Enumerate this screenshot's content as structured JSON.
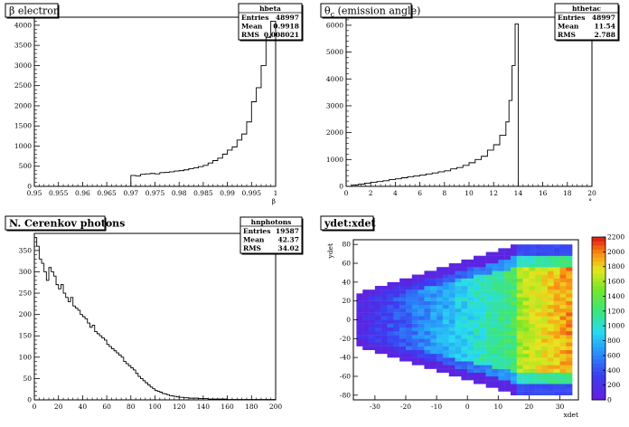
{
  "chart_data": [
    {
      "type": "histogram",
      "title": "β electron",
      "stats": {
        "name": "hbeta",
        "rows": [
          [
            "Entries",
            "48997"
          ],
          [
            "Mean",
            "0.9918"
          ],
          [
            "RMS",
            "0.008021"
          ]
        ]
      },
      "xlabel": "β",
      "ylabel": "",
      "xlim": [
        0.95,
        1.0
      ],
      "ylim": [
        0,
        4200
      ],
      "x_ticks": [
        "0.95",
        "0.955",
        "0.96",
        "0.965",
        "0.97",
        "0.975",
        "0.98",
        "0.985",
        "0.99",
        "0.995",
        "1"
      ],
      "y_ticks": [
        "0",
        "500",
        "1000",
        "1500",
        "2000",
        "2500",
        "3000",
        "3500",
        "4000"
      ],
      "x": [
        0.97,
        0.971,
        0.972,
        0.973,
        0.974,
        0.975,
        0.976,
        0.977,
        0.978,
        0.979,
        0.98,
        0.981,
        0.982,
        0.983,
        0.984,
        0.985,
        0.986,
        0.987,
        0.988,
        0.989,
        0.99,
        0.991,
        0.992,
        0.993,
        0.994,
        0.995,
        0.996,
        0.997,
        0.998,
        0.999
      ],
      "values": [
        270,
        260,
        300,
        310,
        320,
        310,
        340,
        350,
        360,
        380,
        390,
        410,
        440,
        460,
        490,
        520,
        580,
        640,
        700,
        800,
        900,
        980,
        1150,
        1300,
        1600,
        2100,
        2450,
        3000,
        3700,
        4100
      ]
    },
    {
      "type": "histogram",
      "title": "θc (emission angle)",
      "title_main": "θ",
      "title_sub": "c",
      "title_rest": " (emission angle)",
      "stats": {
        "name": "hthetac",
        "rows": [
          [
            "Entries",
            "48997"
          ],
          [
            "Mean",
            "11.54"
          ],
          [
            "RMS",
            "2.788"
          ]
        ]
      },
      "xlabel": "°",
      "ylabel": "",
      "xlim": [
        0,
        20
      ],
      "ylim": [
        0,
        6300
      ],
      "x_ticks": [
        "0",
        "2",
        "4",
        "6",
        "8",
        "10",
        "12",
        "14",
        "16",
        "18",
        "20"
      ],
      "y_ticks": [
        "0",
        "1000",
        "2000",
        "3000",
        "4000",
        "5000",
        "6000"
      ],
      "x": [
        0.5,
        1,
        1.5,
        2,
        2.5,
        3,
        3.5,
        4,
        4.5,
        5,
        5.5,
        6,
        6.5,
        7,
        7.5,
        8,
        8.5,
        9,
        9.5,
        10,
        10.5,
        11,
        11.5,
        12,
        12.5,
        13,
        13.25,
        13.5,
        13.75
      ],
      "values": [
        50,
        80,
        120,
        150,
        180,
        210,
        250,
        280,
        320,
        360,
        390,
        420,
        460,
        500,
        540,
        580,
        650,
        700,
        780,
        880,
        1000,
        1120,
        1350,
        1550,
        1900,
        2400,
        3200,
        4500,
        6050
      ]
    },
    {
      "type": "histogram",
      "title": "N. Cerenkov photons",
      "stats": {
        "name": "hnphotons",
        "rows": [
          [
            "Entries",
            "19587"
          ],
          [
            "Mean",
            "42.37"
          ],
          [
            "RMS",
            "34.02"
          ]
        ]
      },
      "xlabel": "",
      "ylabel": "",
      "xlim": [
        0,
        200
      ],
      "ylim": [
        0,
        390
      ],
      "x_ticks": [
        "0",
        "20",
        "40",
        "60",
        "80",
        "100",
        "120",
        "140",
        "160",
        "180",
        "200"
      ],
      "y_ticks": [
        "0",
        "50",
        "100",
        "150",
        "200",
        "250",
        "300",
        "350"
      ],
      "x": [
        0,
        2,
        4,
        6,
        8,
        10,
        12,
        14,
        16,
        18,
        20,
        22,
        24,
        26,
        28,
        30,
        32,
        34,
        36,
        38,
        40,
        42,
        44,
        46,
        48,
        50,
        52,
        54,
        56,
        58,
        60,
        62,
        64,
        66,
        68,
        70,
        72,
        74,
        76,
        78,
        80,
        82,
        84,
        86,
        88,
        90,
        92,
        94,
        96,
        98,
        100,
        102,
        104,
        106,
        108,
        110,
        112,
        114,
        116,
        118,
        120,
        124,
        128,
        132,
        136,
        140,
        144,
        148,
        152,
        156,
        160,
        164,
        168,
        172,
        176,
        180,
        184,
        188,
        192,
        196
      ],
      "values": [
        380,
        360,
        330,
        320,
        300,
        280,
        310,
        300,
        290,
        270,
        260,
        270,
        250,
        240,
        230,
        240,
        220,
        215,
        210,
        200,
        195,
        190,
        180,
        170,
        175,
        160,
        155,
        150,
        145,
        140,
        130,
        125,
        120,
        115,
        110,
        105,
        100,
        90,
        85,
        80,
        75,
        70,
        62,
        55,
        50,
        45,
        40,
        35,
        30,
        26,
        22,
        20,
        18,
        15,
        14,
        12,
        10,
        9,
        8,
        7,
        6,
        5,
        4,
        4,
        3,
        3,
        2,
        2,
        2,
        2,
        1,
        1,
        1,
        1,
        1,
        1,
        1,
        1,
        1,
        1
      ]
    },
    {
      "type": "heatmap",
      "title": "ydet:xdet",
      "xlabel": "xdet",
      "ylabel": "ydet",
      "xlim": [
        -37,
        36
      ],
      "ylim": [
        -85,
        85
      ],
      "x_ticks": [
        "-30",
        "-20",
        "-10",
        "0",
        "10",
        "20",
        "30"
      ],
      "x_tick_values": [
        -30,
        -20,
        -10,
        0,
        10,
        20,
        30
      ],
      "y_ticks": [
        "-80",
        "-60",
        "-40",
        "-20",
        "0",
        "20",
        "40",
        "60",
        "80"
      ],
      "y_tick_values": [
        -80,
        -60,
        -40,
        -20,
        0,
        20,
        40,
        60,
        80
      ],
      "z_ticks": [
        "0",
        "200",
        "400",
        "600",
        "800",
        "1000",
        "1200",
        "1400",
        "1600",
        "1800",
        "2000",
        "2200"
      ],
      "z_range": [
        0,
        2200
      ]
    }
  ]
}
